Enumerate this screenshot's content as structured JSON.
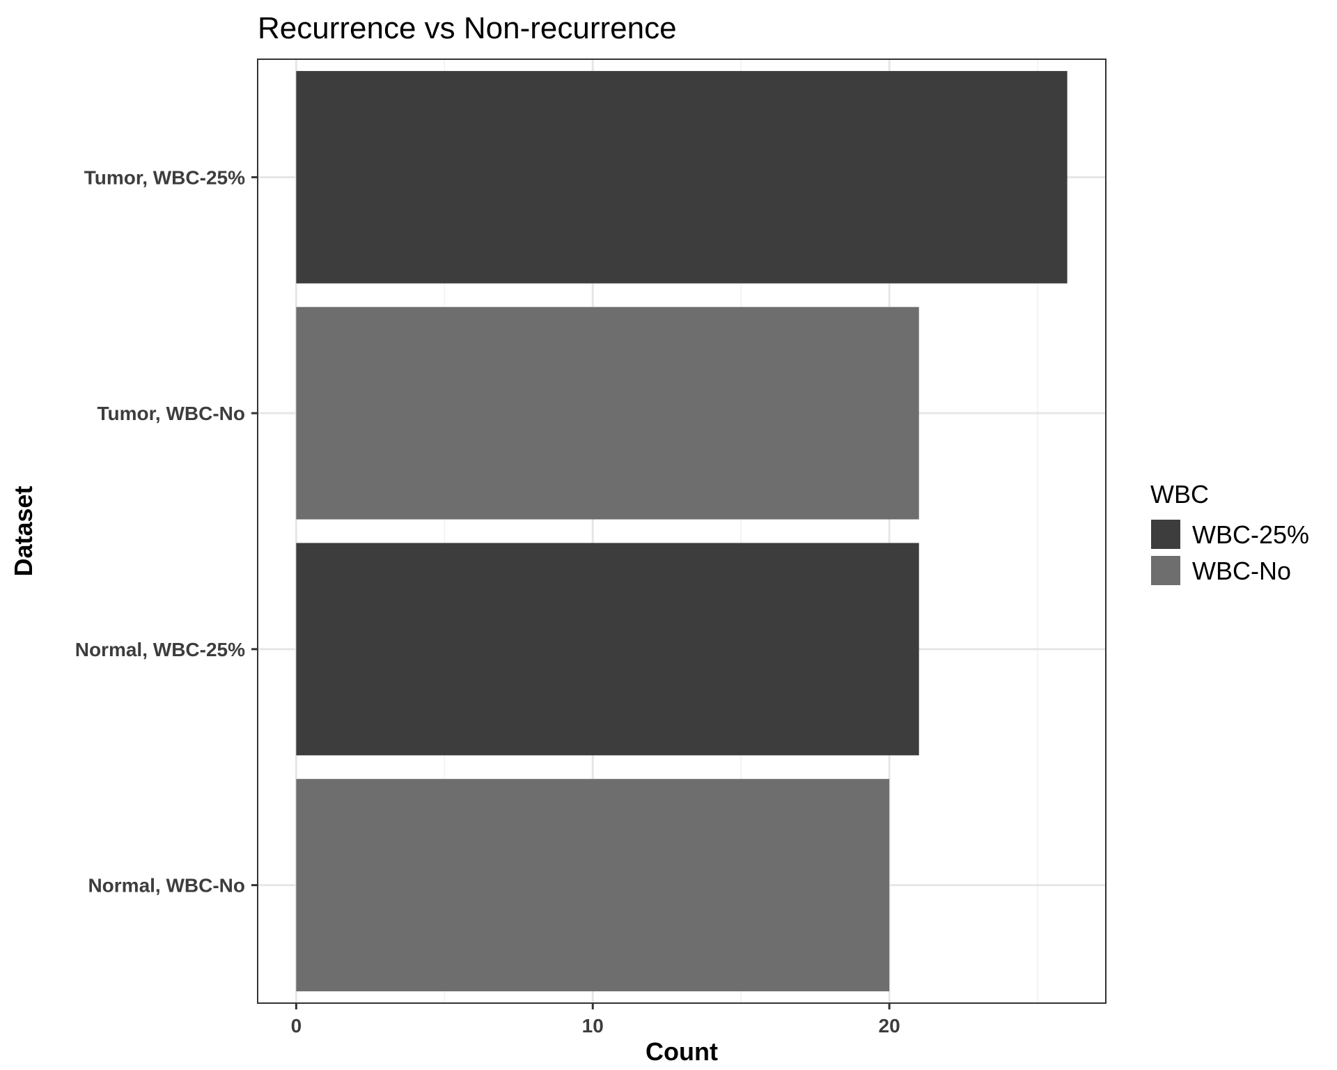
{
  "chart_data": {
    "type": "bar",
    "orientation": "horizontal",
    "title": "Recurrence vs Non-recurrence",
    "xlabel": "Count",
    "ylabel": "Dataset",
    "categories": [
      "Normal, WBC-No",
      "Normal, WBC-25%",
      "Tumor, WBC-No",
      "Tumor, WBC-25%"
    ],
    "values": [
      20,
      21,
      21,
      26
    ],
    "fill_group": [
      "WBC-No",
      "WBC-25%",
      "WBC-No",
      "WBC-25%"
    ],
    "xlim": [
      -1.3,
      27.3
    ],
    "xticks": [
      0,
      10,
      20
    ],
    "grid": true,
    "legend": {
      "title": "WBC",
      "position": "right",
      "entries": [
        {
          "label": "WBC-25%",
          "color": "#3d3d3d"
        },
        {
          "label": "WBC-No",
          "color": "#6e6e6e"
        }
      ]
    }
  }
}
